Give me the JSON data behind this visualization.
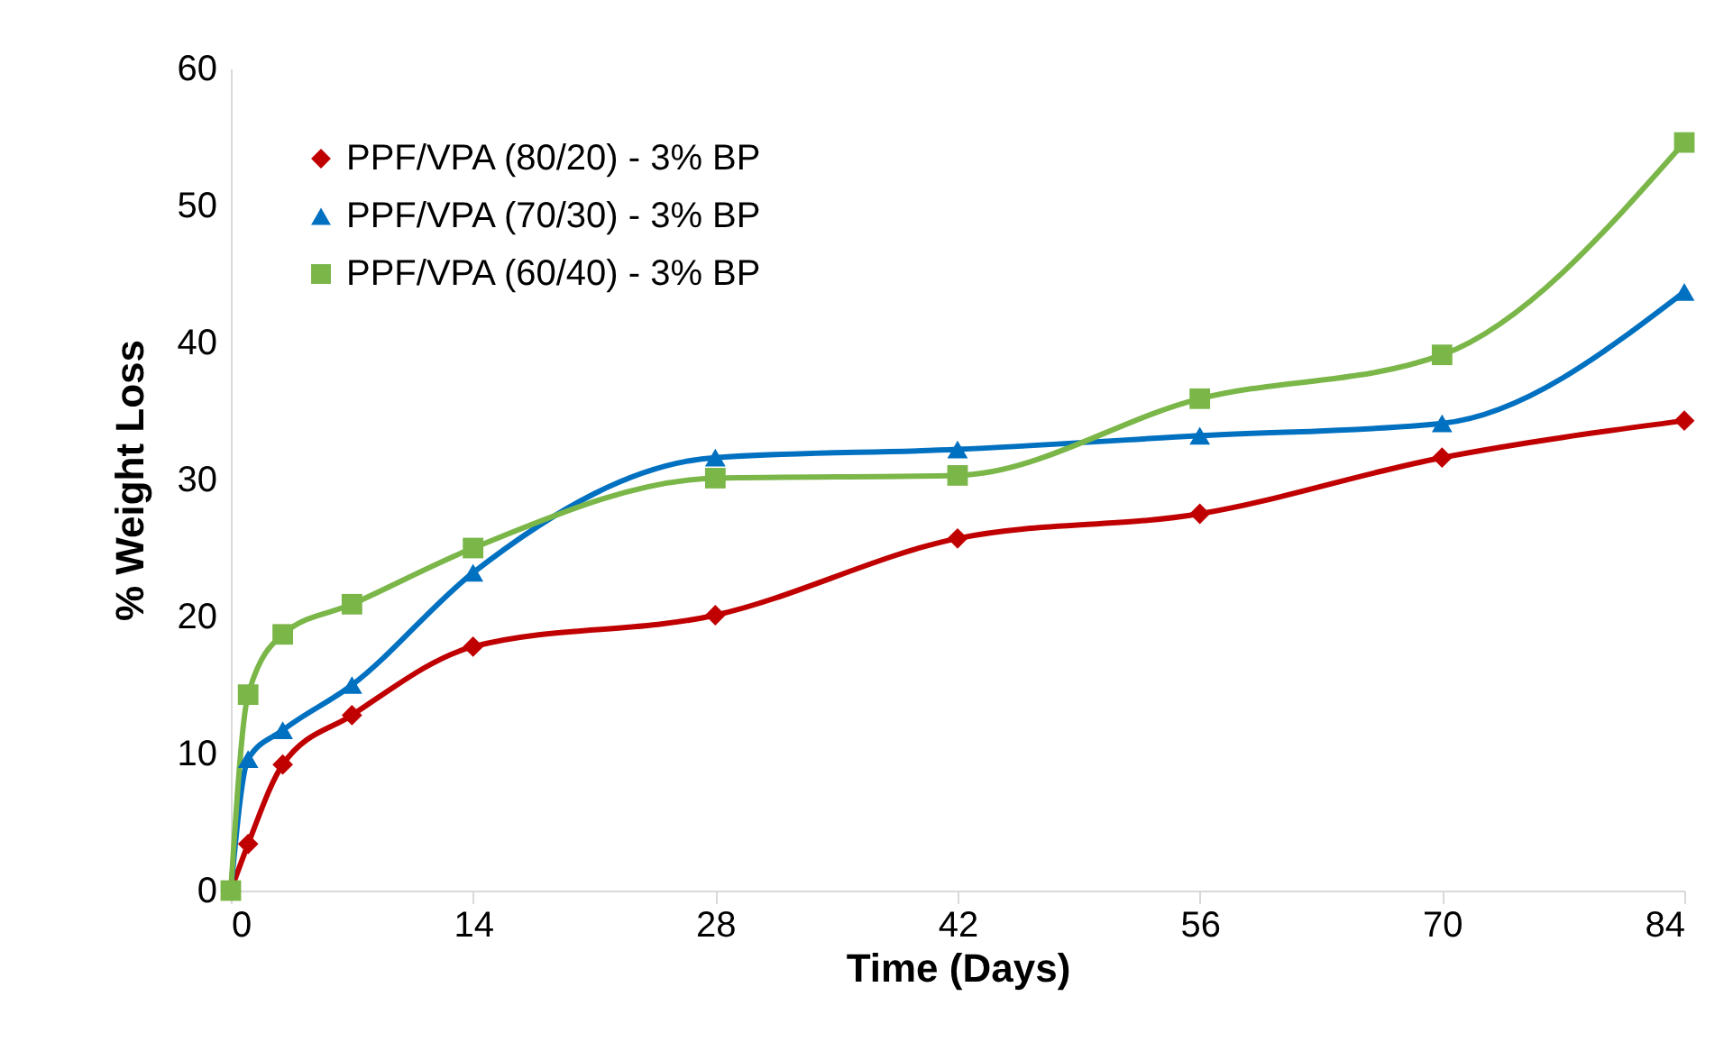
{
  "chart_data": {
    "type": "line",
    "xlabel": "Time (Days)",
    "ylabel": "% Weight Loss",
    "x": [
      0,
      1,
      3,
      7,
      14,
      28,
      42,
      56,
      70,
      84
    ],
    "series": [
      {
        "name": "PPF/VPA (80/20) - 3% BP",
        "color": "#c00000",
        "marker": "diamond",
        "values": [
          0,
          3.4,
          9.2,
          12.8,
          17.8,
          20.1,
          25.7,
          27.5,
          31.6,
          34.3
        ]
      },
      {
        "name": "PPF/VPA (70/30) - 3% BP",
        "color": "#0070c0",
        "marker": "triangle",
        "values": [
          0,
          9.6,
          11.7,
          15.0,
          23.2,
          31.6,
          32.2,
          33.2,
          34.1,
          43.7
        ]
      },
      {
        "name": "PPF/VPA (60/40) - 3% BP",
        "color": "#7ab648",
        "marker": "square",
        "values": [
          0,
          14.3,
          18.7,
          20.9,
          25.0,
          30.1,
          30.3,
          35.9,
          39.1,
          54.6
        ]
      }
    ],
    "xlim": [
      0,
      84
    ],
    "xticks": [
      0,
      14,
      28,
      42,
      56,
      70,
      84
    ],
    "ylim": [
      0,
      60
    ],
    "yticks": [
      0,
      10,
      20,
      30,
      40,
      50,
      60
    ],
    "grid": false,
    "legend": "top left",
    "line_style": "solid"
  }
}
